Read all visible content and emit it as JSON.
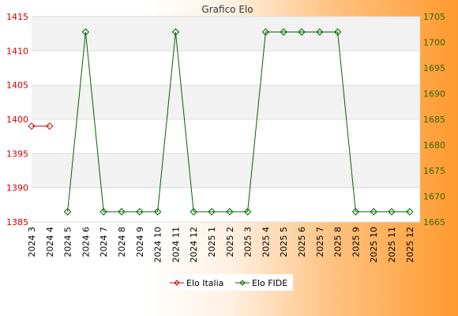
{
  "chart_data": {
    "type": "line",
    "title": "Grafico Elo",
    "categories": [
      "2024 3",
      "2024 4",
      "2024 5",
      "2024 6",
      "2024 7",
      "2024 8",
      "2024 9",
      "2024 10",
      "2024 11",
      "2024 12",
      "2025 1",
      "2025 2",
      "2025 3",
      "2025 4",
      "2025 5",
      "2025 6",
      "2025 7",
      "2025 8",
      "2025 9",
      "2025 10",
      "2025 11",
      "2025 12"
    ],
    "y_left": {
      "range": [
        1385,
        1415
      ],
      "ticks": [
        1385,
        1390,
        1395,
        1400,
        1405,
        1410,
        1415
      ],
      "color": "#cc0000"
    },
    "y_right": {
      "range": [
        1665,
        1705
      ],
      "ticks": [
        1665,
        1670,
        1675,
        1680,
        1685,
        1690,
        1695,
        1700,
        1705
      ],
      "color": "#336600"
    },
    "series": [
      {
        "name": "Elo Italia",
        "axis": "left",
        "color": "#cc0000",
        "values": [
          1399,
          1399,
          null,
          null,
          null,
          null,
          null,
          null,
          null,
          null,
          null,
          null,
          null,
          null,
          null,
          null,
          null,
          null,
          null,
          null,
          null,
          null
        ]
      },
      {
        "name": "Elo FIDE",
        "axis": "right",
        "color": "#006600",
        "values": [
          null,
          null,
          1667,
          1702,
          1667,
          1667,
          1667,
          1667,
          1702,
          1667,
          1667,
          1667,
          1667,
          1702,
          1702,
          1702,
          1702,
          1702,
          1667,
          1667,
          1667,
          1667
        ]
      }
    ],
    "grid": true,
    "legend_position": "bottom-center"
  }
}
